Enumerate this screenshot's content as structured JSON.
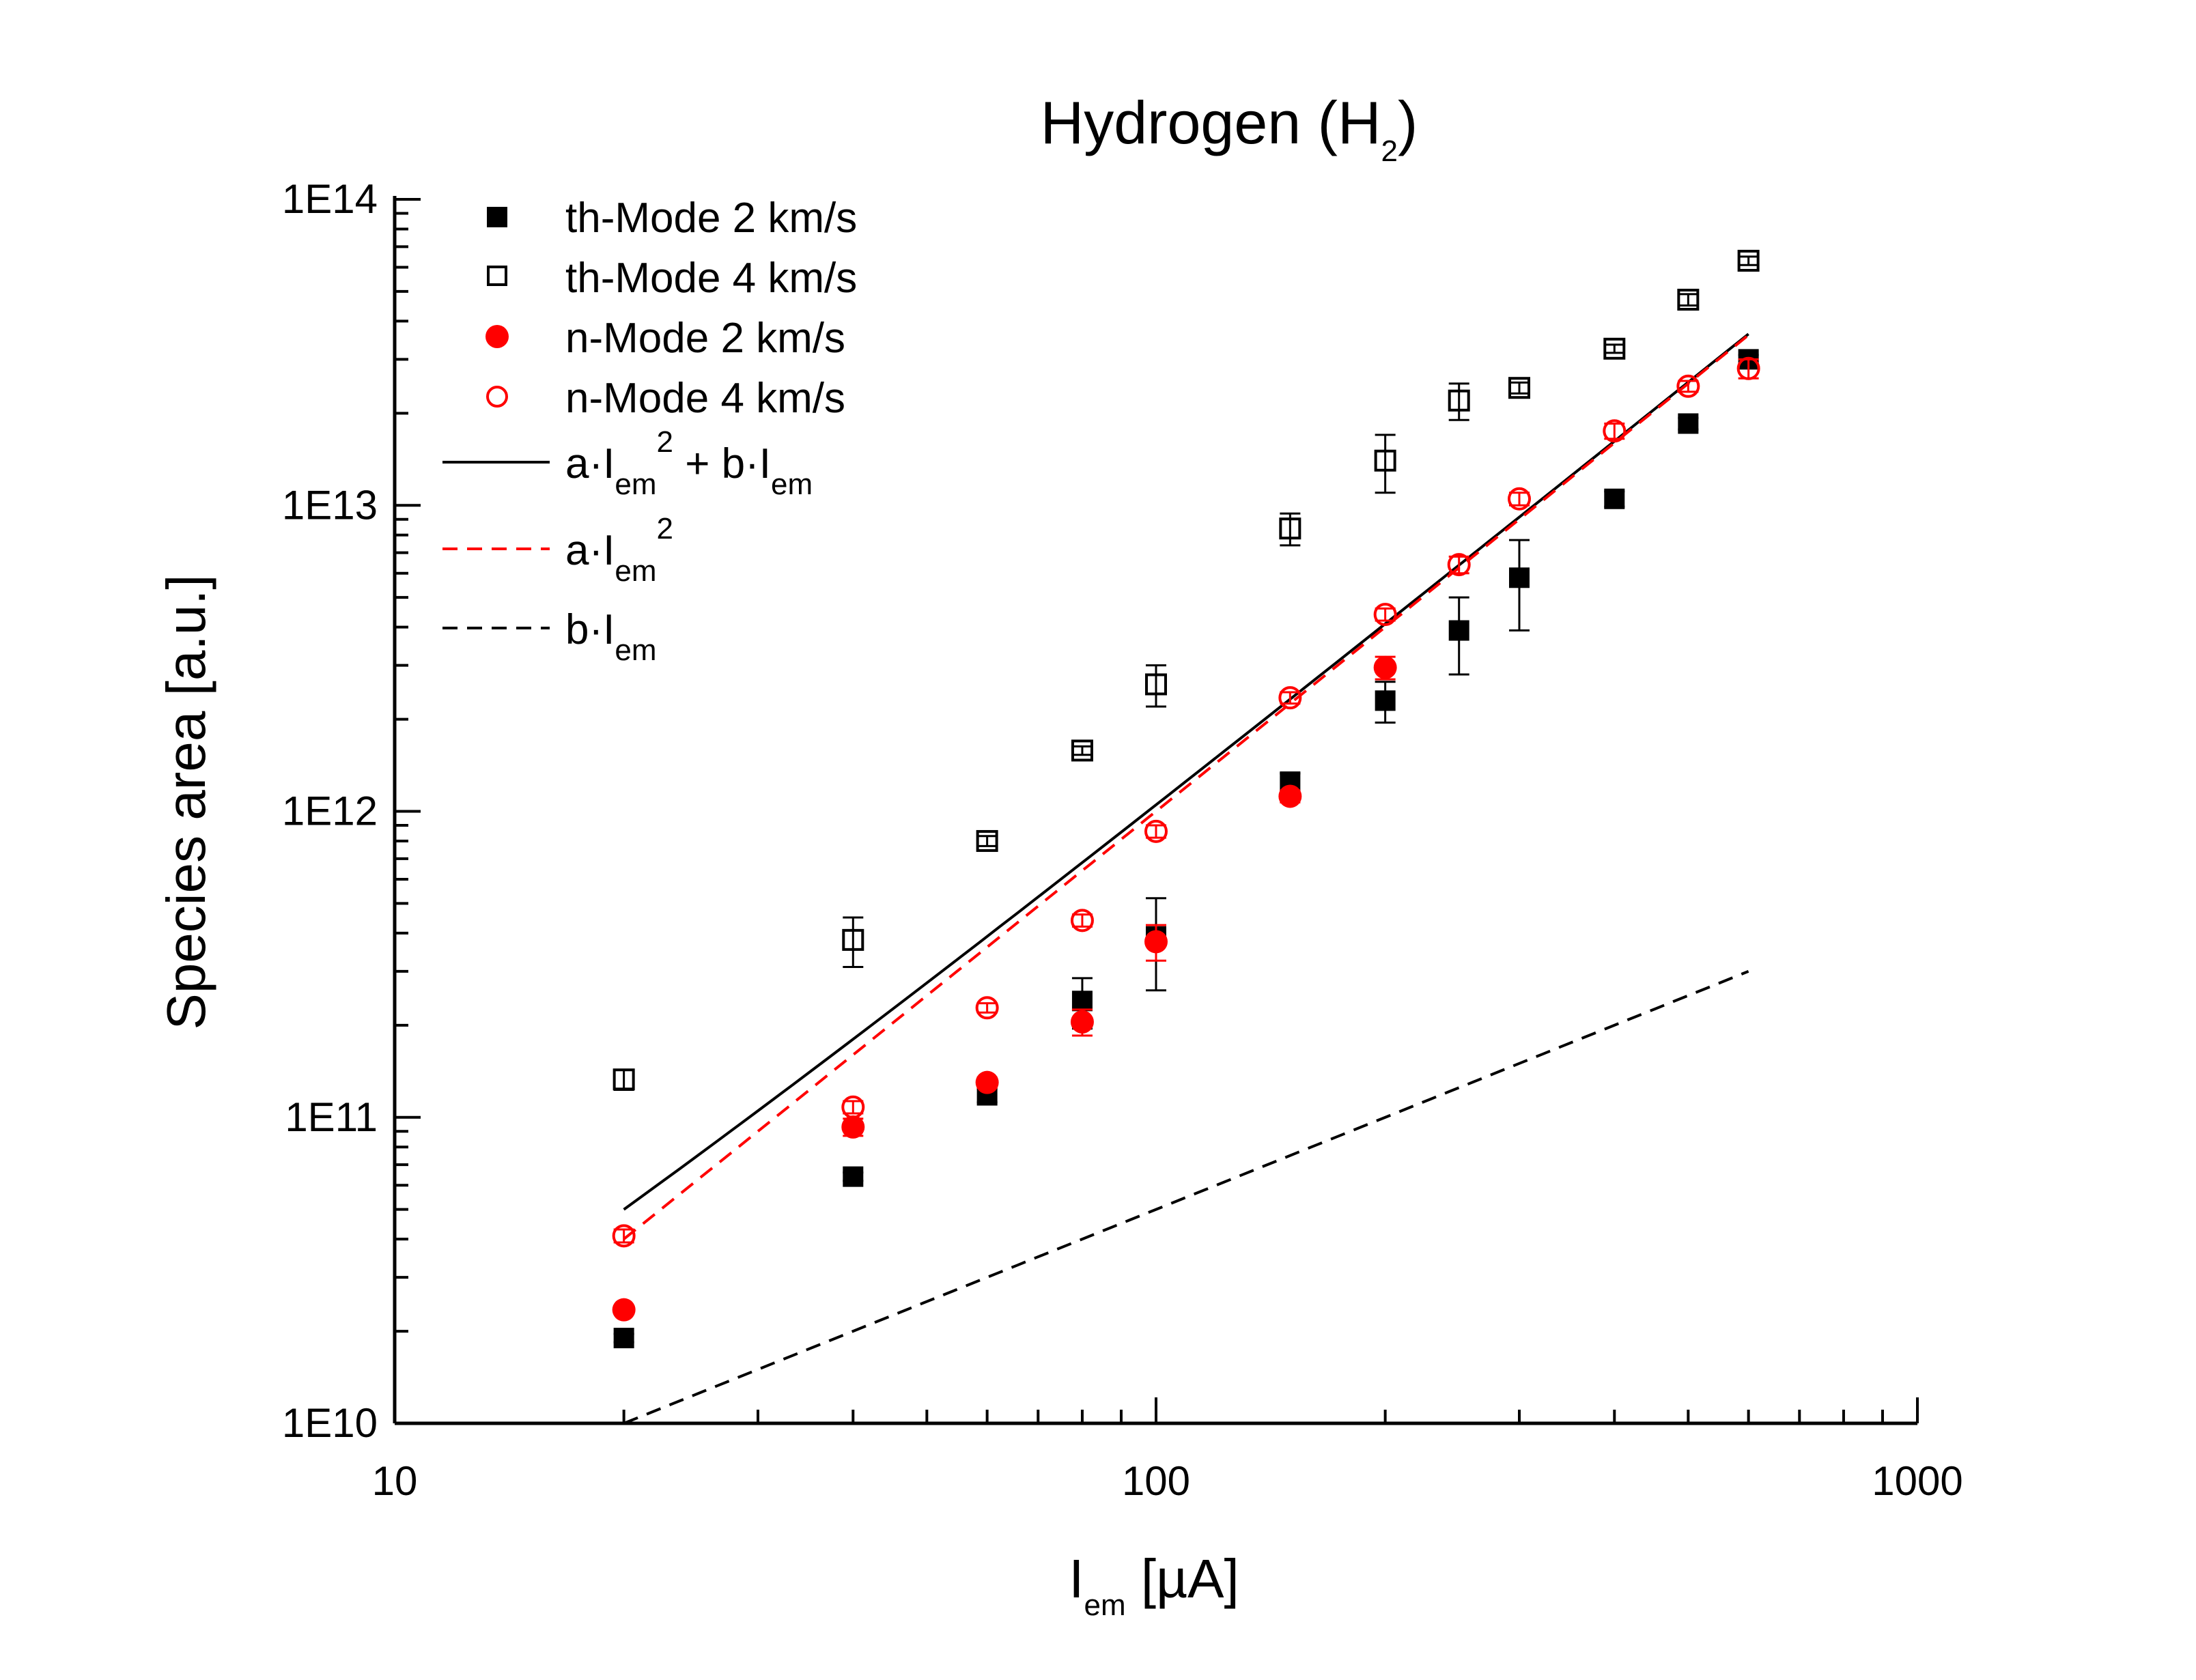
{
  "chart_data": {
    "type": "scatter",
    "title": {
      "main": "Hydrogen (H",
      "sub": "2",
      "end": ")"
    },
    "xlabel": {
      "main": "I",
      "sub": "em",
      "end": " [µA]"
    },
    "ylabel": "Species area [a.u.]",
    "x_scale": "log",
    "y_scale": "log",
    "xlim": [
      10,
      1000
    ],
    "ylim": [
      10000000000.0,
      100000000000000.0
    ],
    "x_ticks": [
      {
        "value": 10,
        "label": "10"
      },
      {
        "value": 100,
        "label": "100"
      },
      {
        "value": 1000,
        "label": "1000"
      }
    ],
    "y_ticks": [
      {
        "value": 10000000000.0,
        "label": "1E10"
      },
      {
        "value": 100000000000.0,
        "label": "1E11"
      },
      {
        "value": 1000000000000.0,
        "label": "1E12"
      },
      {
        "value": 10000000000000.0,
        "label": "1E13"
      },
      {
        "value": 100000000000000.0,
        "label": "1E14"
      }
    ],
    "grid": false,
    "legend_position": "top-left",
    "series": [
      {
        "name": "th-Mode 2 km/s",
        "marker": "square-filled",
        "color": "#000000",
        "x": [
          20,
          40,
          60,
          80,
          100,
          150,
          200,
          250,
          300,
          400,
          500,
          600
        ],
        "y": [
          19000000000.0,
          64000000000.0,
          118000000000.0,
          240000000000.0,
          390000000000.0,
          1250000000000.0,
          2300000000000.0,
          3900000000000.0,
          5800000000000.0,
          10500000000000.0,
          18500000000000.0,
          30000000000000.0
        ],
        "err": [
          600000000.0,
          2000000000.0,
          6000000000.0,
          45000000000.0,
          130000000000.0,
          80000000000.0,
          350000000000.0,
          1100000000000.0,
          1900000000000.0,
          600000000000.0,
          800000000000.0,
          1000000000000.0
        ]
      },
      {
        "name": "th-Mode 4 km/s",
        "marker": "square-open",
        "color": "#000000",
        "x": [
          20,
          40,
          60,
          80,
          100,
          150,
          200,
          250,
          300,
          400,
          500,
          600
        ],
        "y": [
          133000000000.0,
          380000000000.0,
          800000000000.0,
          1580000000000.0,
          2600000000000.0,
          8400000000000.0,
          14000000000000.0,
          22000000000000.0,
          24200000000000.0,
          32500000000000.0,
          47000000000000.0,
          63000000000000.0
        ],
        "err": [
          10000000000.0,
          70000000000.0,
          30000000000.0,
          50000000000.0,
          400000000000.0,
          1000000000000.0,
          3000000000000.0,
          3000000000000.0,
          1000000000000.0,
          1000000000000.0,
          2000000000000.0,
          2000000000000.0
        ]
      },
      {
        "name": "n-Mode  2 km/s",
        "marker": "circle-filled",
        "color": "#ff0000",
        "x": [
          20,
          40,
          60,
          80,
          100,
          150,
          200
        ],
        "y": [
          23500000000.0,
          93000000000.0,
          130000000000.0,
          205000000000.0,
          375000000000.0,
          1120000000000.0,
          2950000000000.0
        ],
        "err": [
          500000000.0,
          6000000000.0,
          5000000000.0,
          20000000000.0,
          50000000000.0,
          50000000000.0,
          250000000000.0
        ]
      },
      {
        "name": "n-Mode  4 km/s",
        "marker": "circle-open",
        "color": "#ff0000",
        "x": [
          20,
          40,
          60,
          80,
          100,
          150,
          200,
          250,
          300,
          400,
          500,
          600
        ],
        "y": [
          41000000000.0,
          108000000000.0,
          228000000000.0,
          440000000000.0,
          860000000000.0,
          2350000000000.0,
          4400000000000.0,
          6400000000000.0,
          10500000000000.0,
          17500000000000.0,
          24500000000000.0,
          28000000000000.0
        ],
        "err": [
          2000000000.0,
          5000000000.0,
          8000000000.0,
          20000000000.0,
          40000000000.0,
          100000000000.0,
          200000000000.0,
          400000000000.0,
          500000000000.0,
          1000000000000.0,
          1000000000000.0,
          2000000000000.0
        ]
      }
    ],
    "fits": [
      {
        "name": {
          "a": "a·I",
          "b": "em",
          "c": "2",
          "d": " + b·I",
          "e": "em"
        },
        "style": "solid",
        "color": "#000000",
        "a": 100000000.0,
        "b": 500000000.0,
        "x_range": [
          20,
          600
        ]
      },
      {
        "name": {
          "a": "a·I",
          "b": "em",
          "c": "2"
        },
        "style": "dashed",
        "color": "#ff0000",
        "a": 100000000.0,
        "b": 0,
        "x_range": [
          20,
          600
        ]
      },
      {
        "name": {
          "a": "b·I",
          "b": "em"
        },
        "style": "dashed",
        "color": "#000000",
        "a": 0,
        "b": 500000000.0,
        "x_range": [
          20,
          600
        ]
      }
    ]
  }
}
